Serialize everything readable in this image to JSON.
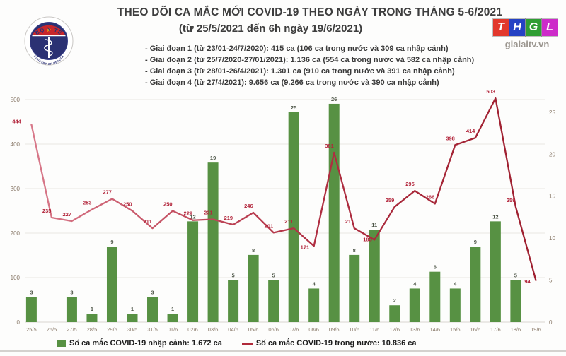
{
  "header": {
    "title": "THEO DÕI CA MẮC MỚI COVID-19 THEO NGÀY TRONG THÁNG 5-6/2021",
    "subtitle": "(từ 25/5/2021 đến 6h ngày 19/6/2021)",
    "bullets": [
      "- Giai đoạn 1 (từ 23/01-24/7/2020): 415 ca (106 ca trong nước và 309 ca nhập cảnh)",
      "- Giai đoạn 2 (từ 25/7/2020-27/01/2021): 1.136 ca (554 ca trong nước và 582 ca nhập cảnh)",
      "- Giai đoạn 3 (từ 28/01-26/4/2021): 1.301 ca (910 ca trong nước và 391 ca nhập cảnh)",
      "- Giai đoạn 4 (từ 27/4/2021): 9.656 ca (9.266 ca trong nước và 390 ca nhập cảnh)"
    ]
  },
  "logos": {
    "moh": {
      "top_text": "BỘ Y TẾ",
      "bottom_text": "MINISTRY OF HEALTH",
      "colors": {
        "navy": "#2b3173",
        "red": "#c8262c",
        "star": "#ffd200"
      }
    },
    "thgl": {
      "letters": [
        {
          "char": "T",
          "color": "#e2382c"
        },
        {
          "char": "H",
          "color": "#2542c4"
        },
        {
          "char": "G",
          "color": "#2f9e33"
        },
        {
          "char": "L",
          "color": "#cd2bc9"
        }
      ],
      "site": "gialaitv.vn"
    }
  },
  "chart_data": {
    "type": "combo-bar-line",
    "categories": [
      "25/5",
      "26/5",
      "27/5",
      "28/5",
      "29/5",
      "30/5",
      "31/5",
      "01/6",
      "02/6",
      "03/6",
      "04/6",
      "05/6",
      "06/6",
      "07/6",
      "08/6",
      "09/6",
      "10/6",
      "11/6",
      "12/6",
      "13/6",
      "14/6",
      "15/6",
      "16/6",
      "17/6",
      "18/6",
      "19/6"
    ],
    "series": [
      {
        "name": "Số ca mắc COVID-19 nhập cảnh",
        "type": "bar",
        "axis": "right",
        "color": "#579143",
        "values": [
          3,
          0,
          3,
          1,
          9,
          1,
          3,
          1,
          12,
          19,
          5,
          8,
          5,
          25,
          4,
          26,
          8,
          11,
          2,
          4,
          6,
          4,
          9,
          12,
          5,
          0
        ]
      },
      {
        "name": "Số ca mắc COVID-19 trong nước",
        "type": "line",
        "axis": "left",
        "color": "#ad2738",
        "values": [
          444,
          235,
          227,
          253,
          277,
          250,
          211,
          250,
          229,
          231,
          219,
          246,
          201,
          211,
          171,
          381,
          211,
          185,
          259,
          295,
          266,
          398,
          414,
          503,
          259,
          94
        ]
      }
    ],
    "left_axis": {
      "ticks": [
        0,
        100,
        200,
        300,
        400,
        500
      ],
      "max": 500
    },
    "right_axis": {
      "ticks": [
        0,
        5,
        10,
        15,
        20,
        25
      ],
      "max": 25
    },
    "grid": "horizontal",
    "legend_position": "bottom",
    "legend": [
      {
        "label": "Số ca mắc COVID-19 nhập cảnh: 1.672 ca",
        "swatch": "square",
        "color": "#579143"
      },
      {
        "label": "Số ca mắc COVID-19 trong nước: 10.836 ca",
        "swatch": "line",
        "color": "#b02a3a"
      }
    ],
    "label_colors": {
      "bar_labels": "#4f5749",
      "line_labels": "#b2243a",
      "axis": "#8a7a6a"
    }
  }
}
